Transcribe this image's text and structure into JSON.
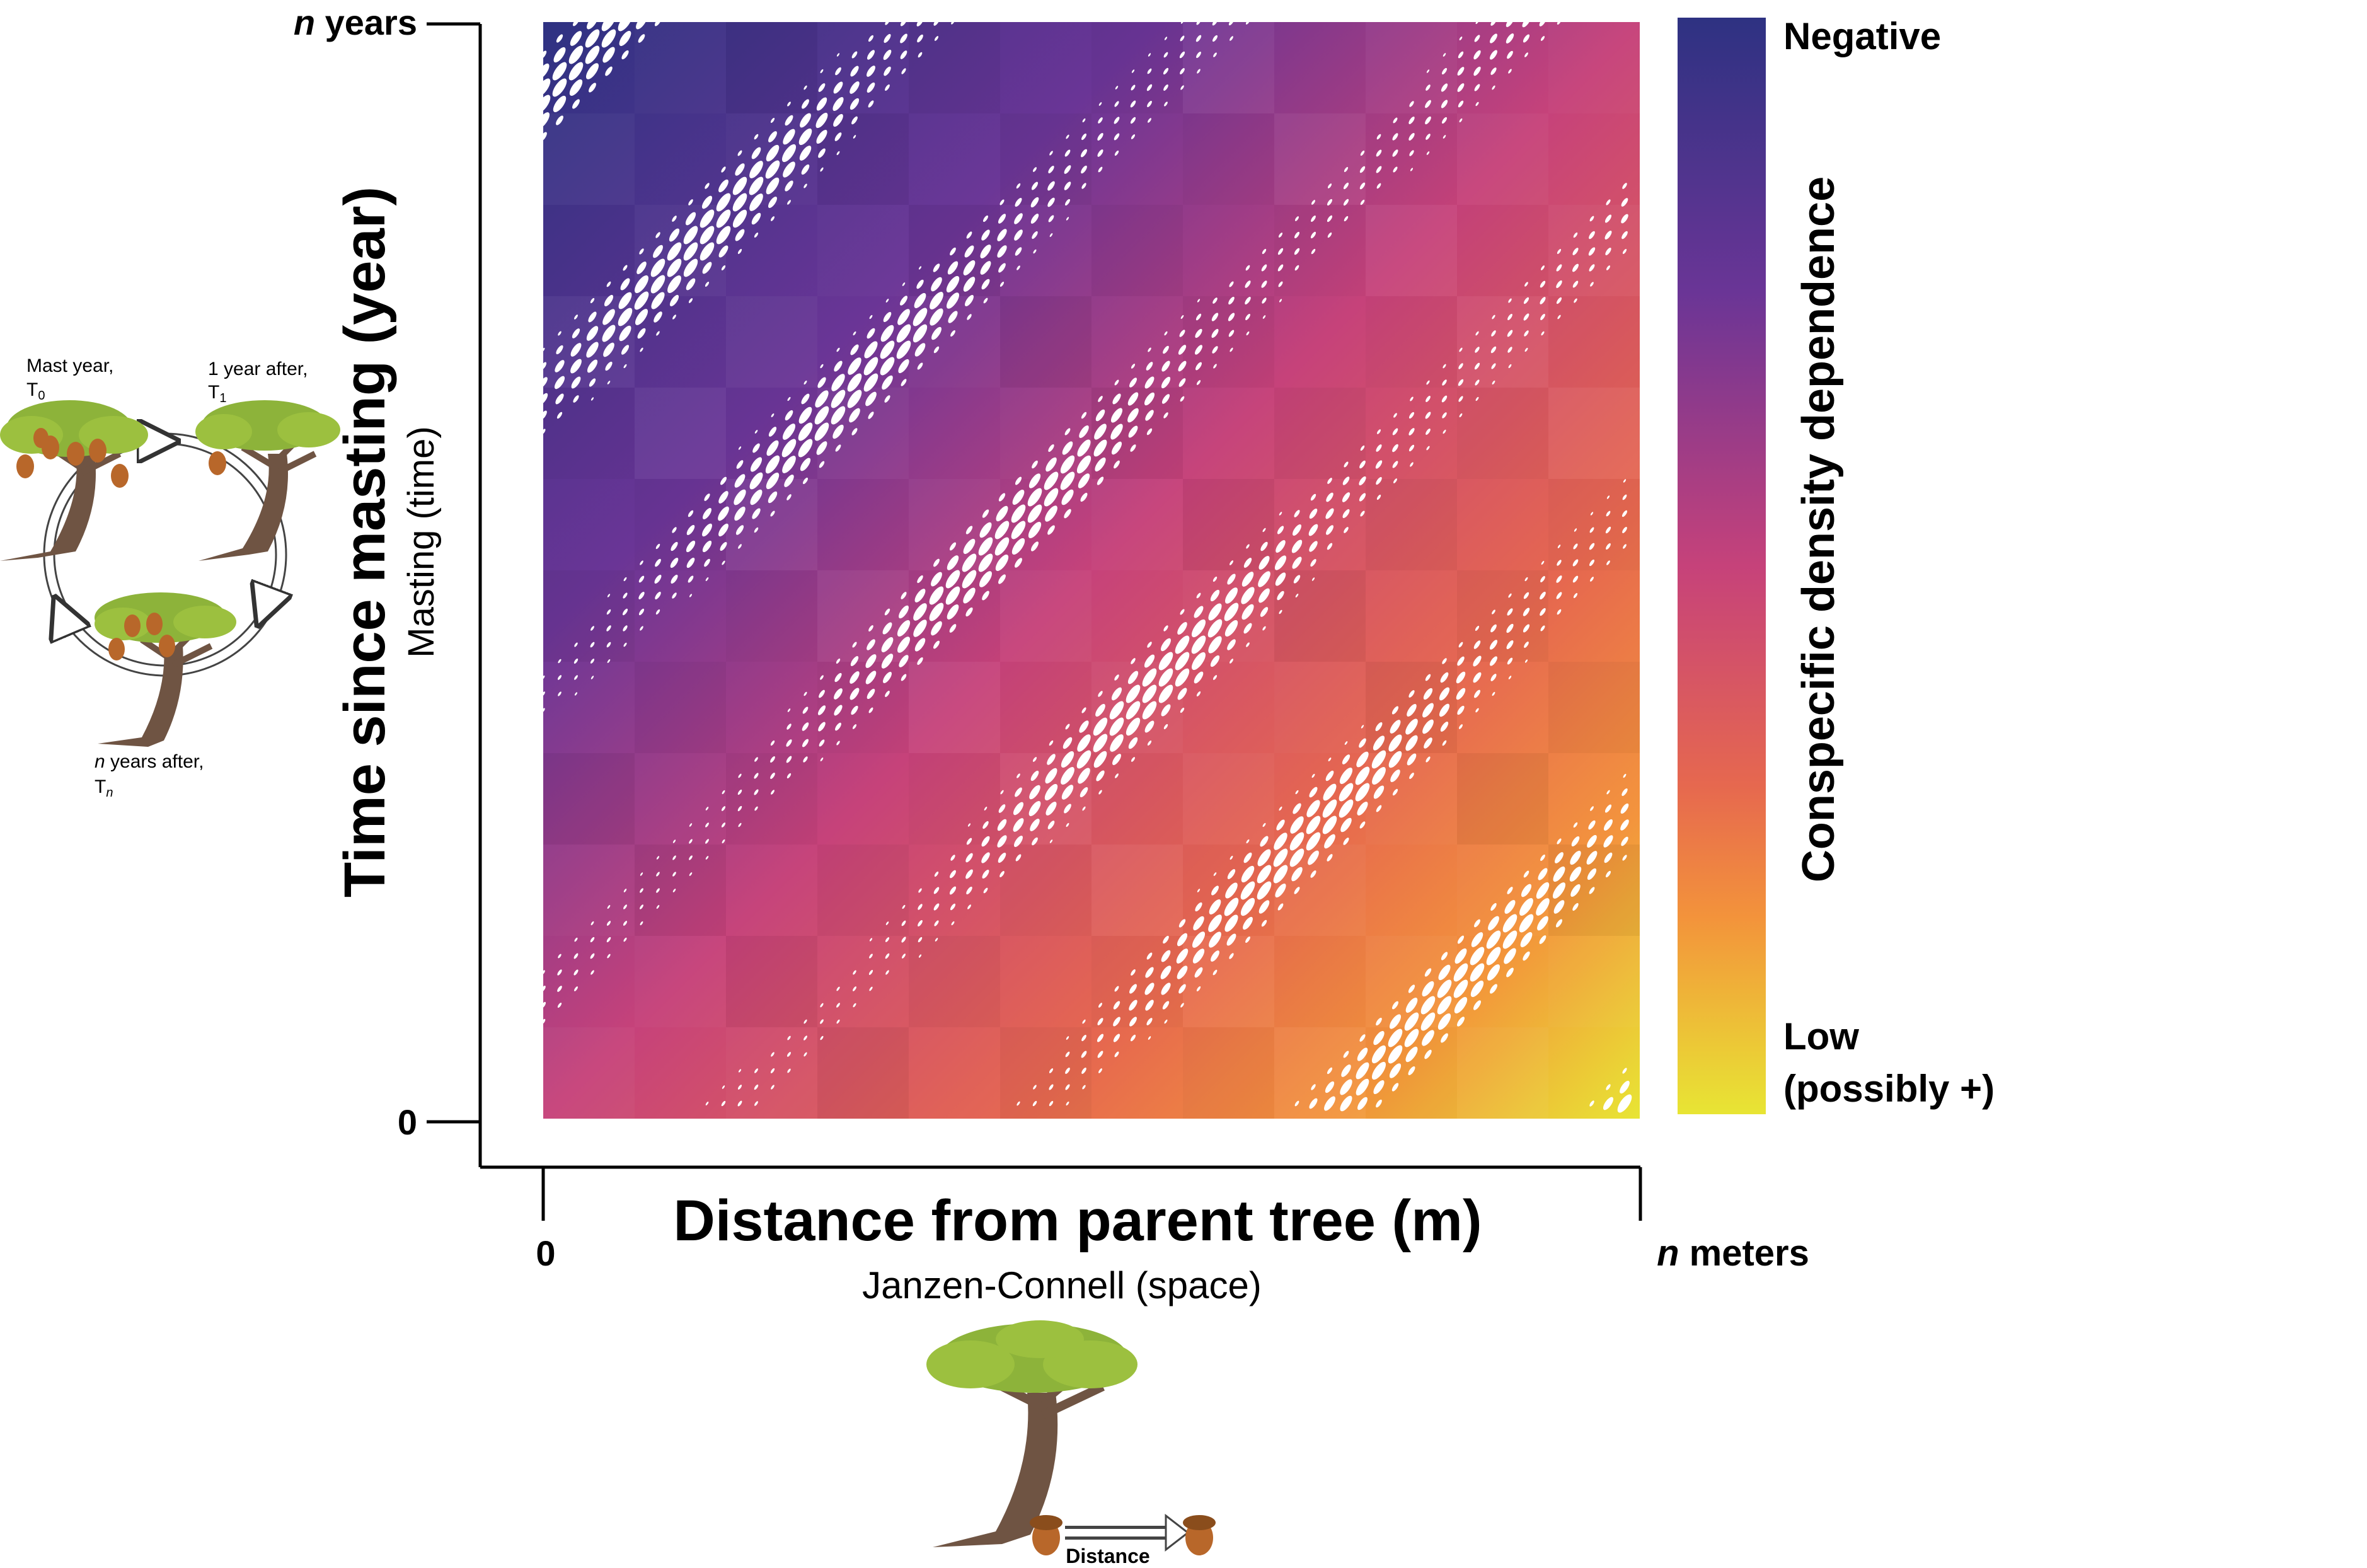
{
  "colors": {
    "negative": "#2e3282",
    "purple": "#6a3596",
    "magenta": "#c6427a",
    "coral": "#e6684f",
    "orange": "#f3933b",
    "low": "#e8e534",
    "axis": "#000000",
    "leaf": "#8db33a",
    "trunk": "#6f5443",
    "acorn": "#b8672a"
  },
  "y_axis": {
    "title": "Time since masting (year)",
    "subtitle": "Masting (time)",
    "top_tick_italic": "n",
    "top_tick_rest": " years",
    "bottom_tick": "0"
  },
  "x_axis": {
    "title": "Distance from parent tree (m)",
    "subtitle": "Janzen-Connell (space)",
    "left_tick": "0",
    "right_tick_italic": "n",
    "right_tick_rest": " meters"
  },
  "colorbar": {
    "title": "Conspecific density dependence",
    "top_label": "Negative",
    "bottom_label_line1": "Low",
    "bottom_label_line2": "(possibly +)"
  },
  "cycle_illustration": {
    "t0_label": "Mast year,",
    "t0_sub": "T",
    "t0_subscript": "0",
    "t1_label": "1 year after,",
    "t1_sub": "T",
    "t1_subscript": "1",
    "tn_label_italic": "n",
    "tn_label_rest": " years after,",
    "tn_sub": "T",
    "tn_subscript": "n"
  },
  "distance_illustration": {
    "arrow_label": "Distance"
  }
}
